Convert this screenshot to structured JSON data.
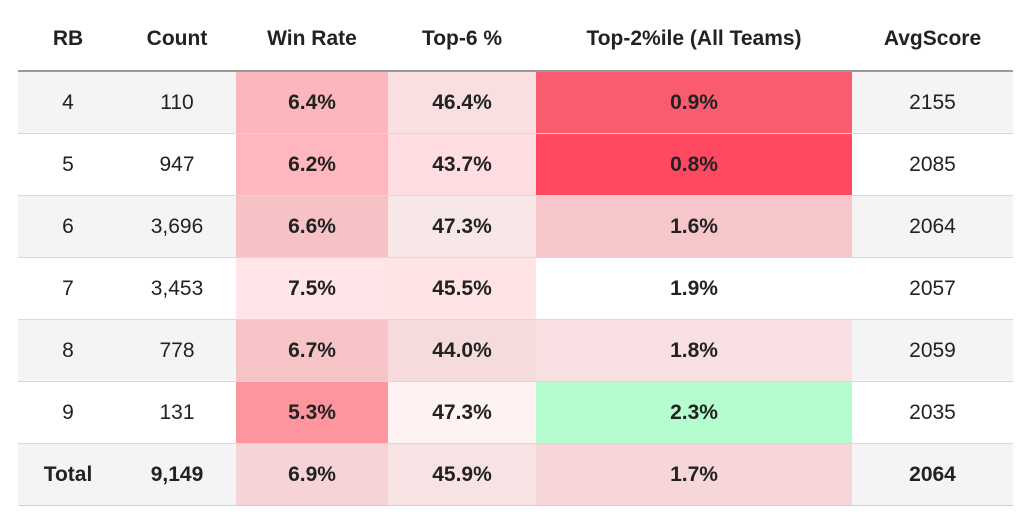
{
  "table": {
    "headers": [
      "RB",
      "Count",
      "Win Rate",
      "Top-6 %",
      "Top-2%ile (All Teams)",
      "AvgScore"
    ],
    "rows": [
      {
        "rb": "4",
        "count": "110",
        "win_rate": "6.4%",
        "top6": "46.4%",
        "top2": "0.9%",
        "avg": "2155",
        "colors": {
          "base": "#f4f4f4",
          "win_rate": "#fbb7bc",
          "top6": "#fadfe1",
          "top2": "#fa5c6f"
        }
      },
      {
        "rb": "5",
        "count": "947",
        "win_rate": "6.2%",
        "top6": "43.7%",
        "top2": "0.8%",
        "avg": "2085",
        "colors": {
          "base": "#ffffff",
          "win_rate": "#ffb6bd",
          "top6": "#ffdde0",
          "top2": "#ff4961"
        }
      },
      {
        "rb": "6",
        "count": "3,696",
        "win_rate": "6.6%",
        "top6": "47.3%",
        "top2": "1.6%",
        "avg": "2064",
        "colors": {
          "base": "#f4f4f4",
          "win_rate": "#f6c2c6",
          "top6": "#f8e7e8",
          "top2": "#f6c6ca"
        }
      },
      {
        "rb": "7",
        "count": "3,453",
        "win_rate": "7.5%",
        "top6": "45.5%",
        "top2": "1.9%",
        "avg": "2057",
        "colors": {
          "base": "#ffffff",
          "win_rate": "#ffe5e7",
          "top6": "#ffe3e5",
          "top2": "#ffffff"
        }
      },
      {
        "rb": "8",
        "count": "778",
        "win_rate": "6.7%",
        "top6": "44.0%",
        "top2": "1.8%",
        "avg": "2059",
        "colors": {
          "base": "#f4f4f4",
          "win_rate": "#f6c3c7",
          "top6": "#f6dbdd",
          "top2": "#f8dfe2"
        }
      },
      {
        "rb": "9",
        "count": "131",
        "win_rate": "5.3%",
        "top6": "47.3%",
        "top2": "2.3%",
        "avg": "2035",
        "colors": {
          "base": "#ffffff",
          "win_rate": "#fd959e",
          "top6": "#fff2f3",
          "top2": "#b5fcce"
        }
      },
      {
        "rb": "Total",
        "count": "9,149",
        "win_rate": "6.9%",
        "top6": "45.9%",
        "top2": "1.7%",
        "avg": "2064",
        "colors": {
          "base": "#f4f4f4",
          "win_rate": "#f6d3d6",
          "top6": "#f7e2e4",
          "top2": "#f7d6da"
        }
      }
    ]
  }
}
